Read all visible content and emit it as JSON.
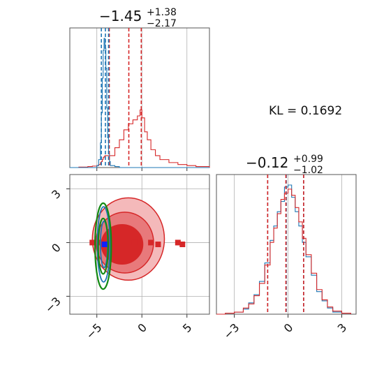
{
  "chart_data": {
    "type": "corner",
    "annotation": "KL = 0.1692",
    "colors": {
      "blue": "#1f77b4",
      "red": "#d62728",
      "green": "#138a13",
      "grid": "#b0b0b0"
    },
    "params": [
      {
        "title_median": "−1.45",
        "title_plus": "+1.38",
        "title_minus": "−2.17",
        "range": [
          -8,
          7.5
        ],
        "ticks": [
          -5,
          0,
          5
        ],
        "tick_labels": [
          "−5",
          "0",
          "5"
        ],
        "red_quantiles": [
          -3.62,
          -1.45,
          -0.07
        ],
        "blue_quantiles": [
          -4.5,
          -4.05,
          -3.7
        ]
      },
      {
        "title_median": "−0.12",
        "title_plus": "+0.99",
        "title_minus": "−1.02",
        "range": [
          -4,
          3.8
        ],
        "ticks": [
          -3,
          0,
          3
        ],
        "tick_labels": [
          "−3",
          "0",
          "3"
        ],
        "red_quantiles": [
          -1.14,
          -0.12,
          0.87
        ],
        "blue_quantiles": [
          -1.14,
          -0.1,
          0.87
        ]
      }
    ],
    "hist_x": {
      "x": [
        -8,
        -7,
        -6,
        -5.5,
        -5,
        -4.8,
        -4.6,
        -4.5,
        -4.4,
        -4.3,
        -4.2,
        -4.1,
        -4.0,
        -3.9,
        -3.8,
        -3.7,
        -3.6,
        -3.5,
        -3,
        -2.5,
        -2,
        -1.5,
        -1,
        -0.5,
        -0.2,
        0,
        0.3,
        0.6,
        1,
        1.5,
        2,
        3,
        4,
        5,
        6,
        7.5
      ],
      "red": [
        0,
        0.5,
        1,
        1.5,
        2,
        3,
        5,
        6,
        8,
        10,
        11,
        12,
        12,
        12,
        12,
        12,
        12,
        12,
        20,
        28,
        38,
        44,
        48,
        52,
        58,
        50,
        36,
        28,
        18,
        12,
        8,
        5,
        3,
        2,
        1,
        0
      ],
      "blue": [
        0,
        0,
        0,
        0,
        2,
        8,
        25,
        55,
        90,
        118,
        130,
        120,
        100,
        60,
        30,
        14,
        6,
        2,
        1,
        0,
        0,
        0,
        0,
        0,
        0,
        0,
        0,
        0,
        0,
        0,
        0,
        0,
        0,
        0,
        0,
        0
      ]
    },
    "hist_y": {
      "x": [
        -4,
        -3.5,
        -3,
        -2.5,
        -2.2,
        -1.9,
        -1.6,
        -1.3,
        -1.0,
        -0.8,
        -0.6,
        -0.4,
        -0.2,
        0,
        0.2,
        0.4,
        0.6,
        0.8,
        1.0,
        1.3,
        1.6,
        1.9,
        2.2,
        2.5,
        3,
        3.5
      ],
      "red": [
        0,
        1,
        2,
        6,
        10,
        18,
        30,
        48,
        70,
        84,
        98,
        112,
        118,
        122,
        116,
        104,
        90,
        74,
        58,
        40,
        24,
        14,
        7,
        3,
        1,
        0
      ],
      "blue": [
        0,
        1,
        2,
        5,
        11,
        19,
        32,
        50,
        72,
        86,
        100,
        110,
        124,
        126,
        114,
        100,
        86,
        70,
        56,
        38,
        22,
        13,
        6,
        2,
        1,
        0
      ]
    },
    "scatter": {
      "red_points_x": [
        -5.5,
        -4.7,
        -3.6,
        -0.8,
        1.0,
        1.8,
        4.0,
        4.5
      ],
      "red_points_y": [
        0.0,
        0.0,
        0.0,
        0.0,
        0.0,
        -0.1,
        0.0,
        -0.1
      ],
      "blue_point": {
        "x": -4.15,
        "y": -0.1
      },
      "red_contours": [
        {
          "cx": -1.5,
          "cy": 0.2,
          "rx": 4.0,
          "ry": 2.3
        },
        {
          "cx": -1.9,
          "cy": 0.0,
          "rx": 3.2,
          "ry": 1.7
        },
        {
          "cx": -2.2,
          "cy": -0.1,
          "rx": 2.3,
          "ry": 1.1
        }
      ],
      "green_contours": [
        {
          "cx": -4.3,
          "cy": -0.2,
          "rx": 0.9,
          "ry": 2.4
        },
        {
          "cx": -4.3,
          "cy": -0.2,
          "rx": 0.55,
          "ry": 1.55
        }
      ],
      "blue_contours": [
        {
          "cx": -4.25,
          "cy": -0.1,
          "rx": 0.7,
          "ry": 2.1
        },
        {
          "cx": -4.2,
          "cy": -0.1,
          "rx": 0.4,
          "ry": 1.3
        }
      ]
    }
  }
}
